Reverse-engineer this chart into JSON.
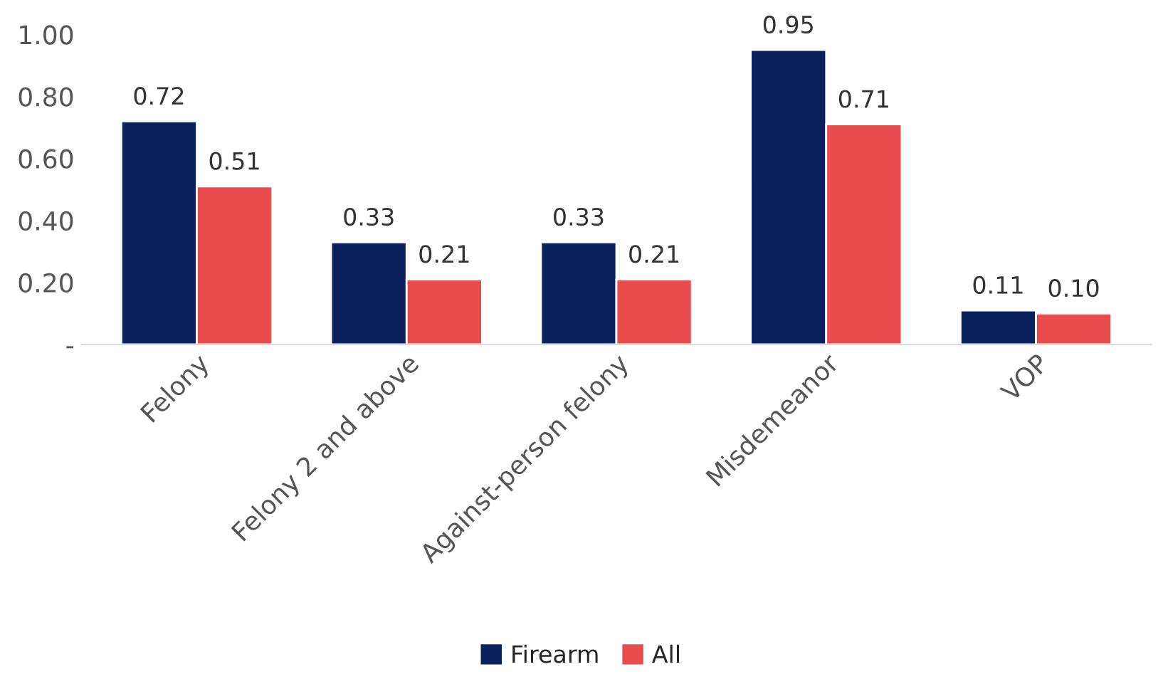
{
  "chart_data": {
    "type": "bar",
    "categories": [
      "Felony",
      "Felony 2 and above",
      "Against-person felony",
      "Misdemeanor",
      "VOP"
    ],
    "series": [
      {
        "name": "Firearm",
        "color": "#0b215e",
        "values": [
          0.72,
          0.33,
          0.33,
          0.95,
          0.11
        ],
        "value_labels": [
          "0.72",
          "0.33",
          "0.33",
          "0.95",
          "0.11"
        ]
      },
      {
        "name": "All",
        "color": "#e84c4e",
        "values": [
          0.51,
          0.21,
          0.21,
          0.71,
          0.1
        ],
        "value_labels": [
          "0.51",
          "0.21",
          "0.21",
          "0.71",
          "0.10"
        ]
      }
    ],
    "ylim": [
      0,
      1.0
    ],
    "yticks": [
      {
        "value": 0,
        "label": "-"
      },
      {
        "value": 0.2,
        "label": "0.20"
      },
      {
        "value": 0.4,
        "label": "0.40"
      },
      {
        "value": 0.6,
        "label": "0.60"
      },
      {
        "value": 0.8,
        "label": "0.80"
      },
      {
        "value": 1.0,
        "label": "1.00"
      }
    ],
    "grid": false,
    "legend": "bottom"
  }
}
